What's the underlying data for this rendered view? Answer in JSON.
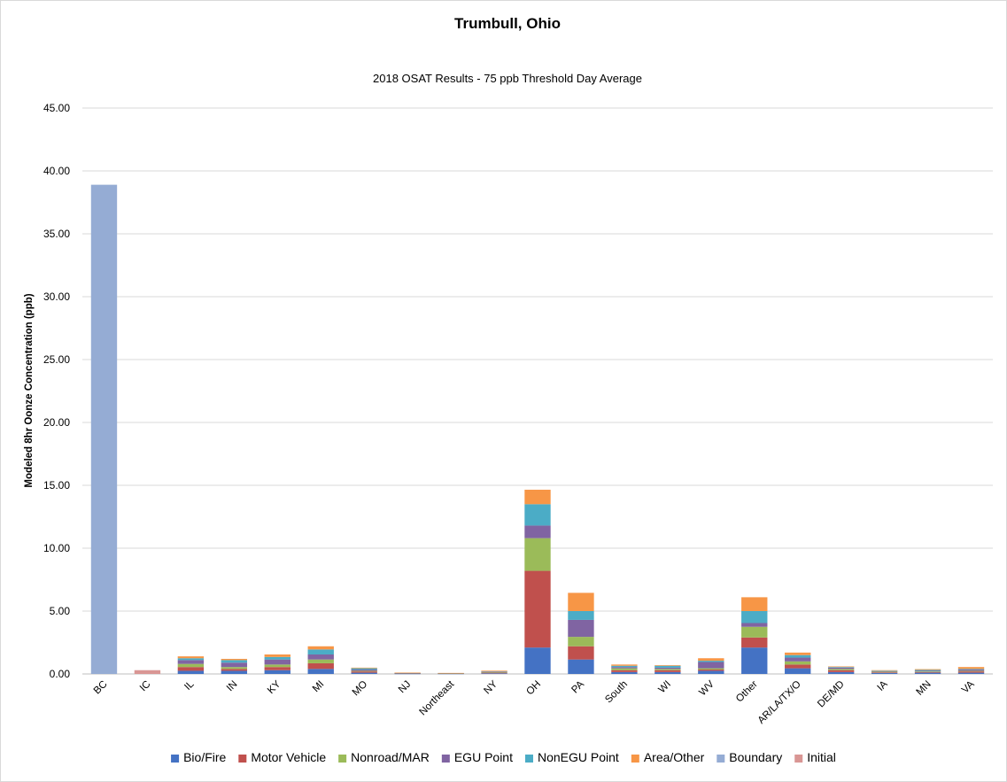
{
  "chart_data": {
    "type": "bar",
    "stacked": true,
    "title": "Trumbull, Ohio",
    "subtitle": "2018 OSAT Results - 75 ppb Threshold Day Average",
    "xlabel": "",
    "ylabel": "Modeled 8hr Oonze Concentration (ppb)",
    "ylim": [
      0,
      45
    ],
    "yticks": [
      "0.00",
      "5.00",
      "10.00",
      "15.00",
      "20.00",
      "25.00",
      "30.00",
      "35.00",
      "40.00",
      "45.00"
    ],
    "grid": true,
    "legend_position": "bottom",
    "categories": [
      "BC",
      "IC",
      "IL",
      "IN",
      "KY",
      "MI",
      "MO",
      "NJ",
      "Northeast",
      "NY",
      "OH",
      "PA",
      "South",
      "WI",
      "WV",
      "Other",
      "AR/LA/TX/O",
      "DE/MD",
      "IA",
      "MN",
      "VA"
    ],
    "series": [
      {
        "name": "Bio/Fire",
        "color": "#4472c4",
        "values": [
          0,
          0,
          0.25,
          0.25,
          0.3,
          0.4,
          0.1,
          0.02,
          0.02,
          0.05,
          2.1,
          1.15,
          0.15,
          0.15,
          0.25,
          2.1,
          0.45,
          0.15,
          0.08,
          0.1,
          0.1
        ]
      },
      {
        "name": "Motor Vehicle",
        "color": "#c0504d",
        "values": [
          0,
          0,
          0.3,
          0.15,
          0.25,
          0.45,
          0.1,
          0.02,
          0.02,
          0.05,
          6.1,
          1.05,
          0.15,
          0.15,
          0.1,
          0.8,
          0.3,
          0.15,
          0.05,
          0.05,
          0.1
        ]
      },
      {
        "name": "Nonroad/MAR",
        "color": "#9bbb59",
        "values": [
          0,
          0,
          0.25,
          0.15,
          0.2,
          0.3,
          0.05,
          0.02,
          0.01,
          0.05,
          2.6,
          0.75,
          0.15,
          0.1,
          0.1,
          0.85,
          0.25,
          0.1,
          0.05,
          0.05,
          0.05
        ]
      },
      {
        "name": "EGU Point",
        "color": "#8064a2",
        "values": [
          0,
          0,
          0.3,
          0.35,
          0.4,
          0.4,
          0.1,
          0.01,
          0.01,
          0.02,
          1.0,
          1.35,
          0.1,
          0.1,
          0.5,
          0.3,
          0.3,
          0.1,
          0.05,
          0.05,
          0.1
        ]
      },
      {
        "name": "NonEGU Point",
        "color": "#4bacc6",
        "values": [
          0,
          0,
          0.15,
          0.2,
          0.2,
          0.4,
          0.1,
          0.02,
          0.01,
          0.03,
          1.7,
          0.7,
          0.1,
          0.15,
          0.1,
          0.95,
          0.2,
          0.05,
          0.03,
          0.07,
          0.05
        ]
      },
      {
        "name": "Area/Other",
        "color": "#f79646",
        "values": [
          0,
          0,
          0.15,
          0.1,
          0.2,
          0.25,
          0.05,
          0.02,
          0.01,
          0.06,
          1.15,
          1.45,
          0.1,
          0.05,
          0.2,
          1.1,
          0.2,
          0.05,
          0.04,
          0.06,
          0.15
        ]
      },
      {
        "name": "Boundary",
        "color": "#95acd4",
        "values": [
          38.9,
          0,
          0,
          0,
          0,
          0,
          0,
          0,
          0,
          0,
          0,
          0,
          0,
          0,
          0,
          0,
          0,
          0,
          0,
          0,
          0
        ]
      },
      {
        "name": "Initial",
        "color": "#d99694",
        "values": [
          0,
          0.3,
          0,
          0,
          0,
          0,
          0,
          0,
          0,
          0,
          0,
          0,
          0,
          0,
          0,
          0,
          0,
          0,
          0,
          0,
          0
        ]
      }
    ]
  }
}
